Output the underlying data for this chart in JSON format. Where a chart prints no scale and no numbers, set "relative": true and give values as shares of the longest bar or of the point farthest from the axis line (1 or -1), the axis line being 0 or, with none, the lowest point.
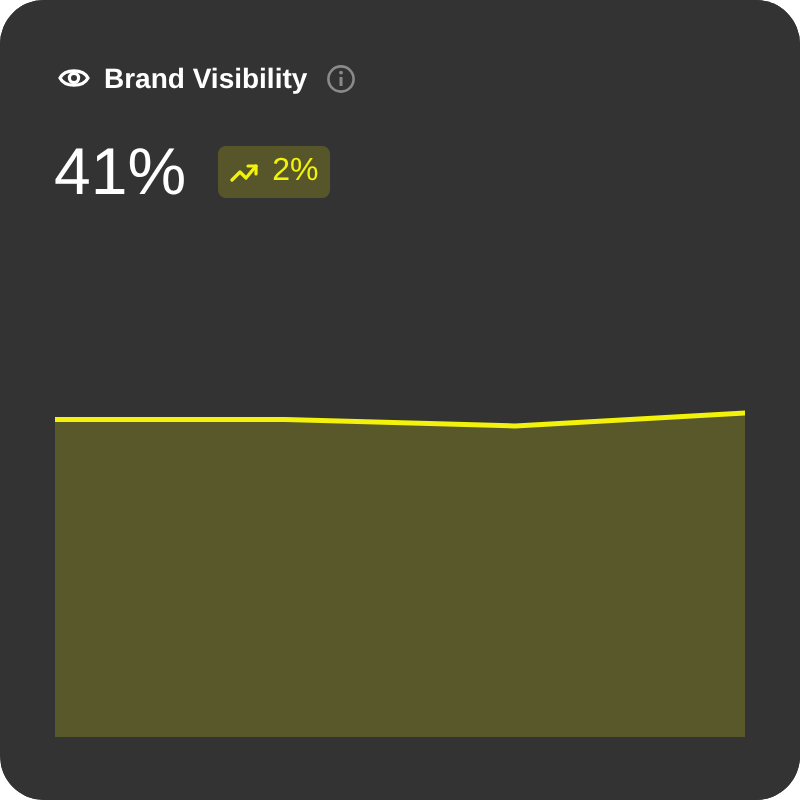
{
  "chart_data": {
    "type": "area",
    "title": "Brand Visibility",
    "annotations": [
      "41%",
      "2%"
    ],
    "categories": [
      null,
      null,
      null,
      null
    ],
    "values": [
      0.98,
      0.98,
      0.96,
      1
    ],
    "color": "#f2f20c",
    "relative": true
  }
}
